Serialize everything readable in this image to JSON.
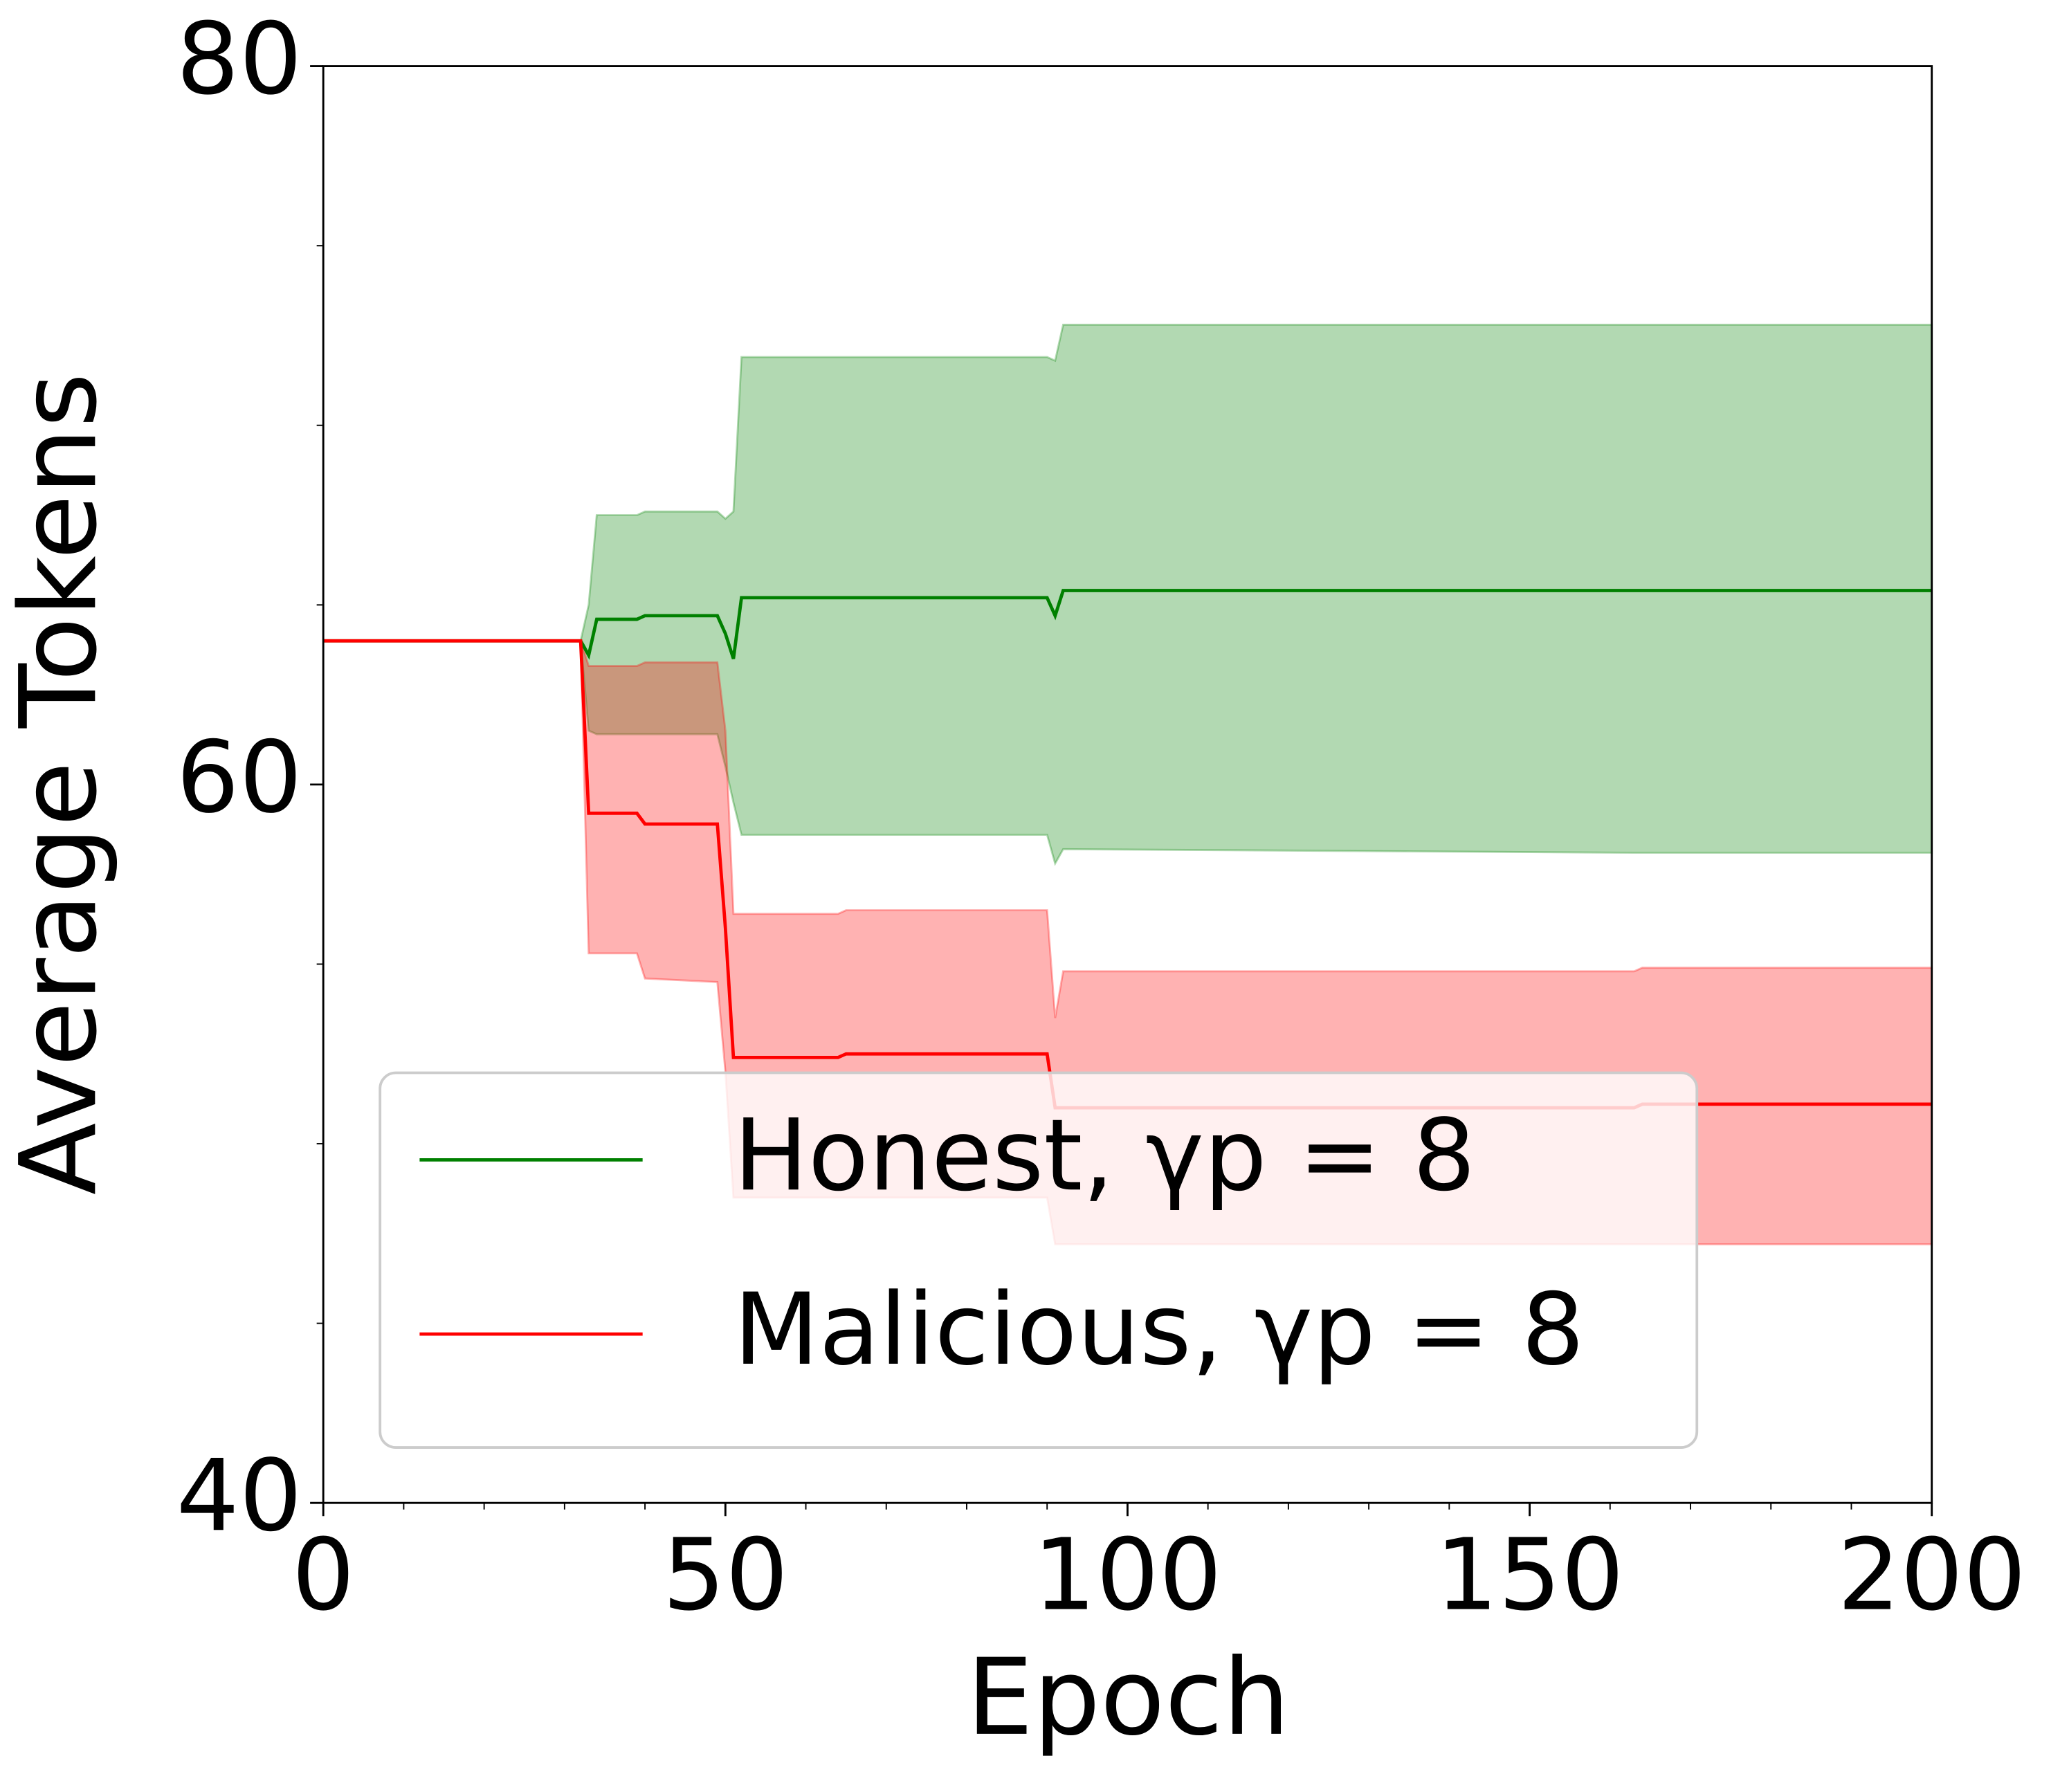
{
  "chart_data": {
    "type": "line",
    "x_label": "Epoch",
    "y_label": "Average Tokens",
    "x": [
      0,
      32,
      33,
      34,
      39,
      40,
      49,
      50,
      51,
      52,
      64,
      65,
      90,
      91,
      92,
      163,
      164,
      200
    ],
    "series": [
      {
        "name": "Honest, γp = 8",
        "color": "#008000",
        "values": [
          64,
          64,
          63.6,
          64.6,
          64.6,
          64.7,
          64.7,
          64.2,
          63.5,
          65.2,
          65.2,
          65.2,
          65.2,
          64.7,
          65.4,
          65.4,
          65.4,
          65.4
        ],
        "lower": [
          64,
          64,
          61.5,
          61.4,
          61.4,
          61.4,
          61.4,
          60.5,
          59.5,
          58.6,
          58.6,
          58.6,
          58.6,
          57.8,
          58.2,
          58.1,
          58.1,
          58.1
        ],
        "upper": [
          64,
          64,
          65.0,
          67.5,
          67.5,
          67.6,
          67.6,
          67.4,
          67.6,
          71.9,
          71.9,
          71.9,
          71.9,
          71.8,
          72.8,
          72.8,
          72.8,
          72.8
        ]
      },
      {
        "name": "Malicious, γp = 8",
        "color": "#ff0000",
        "values": [
          64,
          64,
          59.2,
          59.2,
          59.2,
          58.9,
          58.9,
          56,
          52.4,
          52.4,
          52.4,
          52.5,
          52.5,
          51.0,
          51.0,
          51.0,
          51.1,
          51.1
        ],
        "lower": [
          64,
          64,
          55.3,
          55.3,
          55.3,
          54.6,
          54.5,
          52.0,
          48.5,
          48.5,
          48.5,
          48.5,
          48.5,
          47.2,
          47.2,
          47.2,
          47.2,
          47.2
        ],
        "upper": [
          64,
          64,
          63.3,
          63.3,
          63.3,
          63.4,
          63.4,
          61.5,
          56.4,
          56.4,
          56.4,
          56.5,
          56.5,
          53.5,
          54.8,
          54.8,
          54.9,
          54.9
        ]
      }
    ],
    "xlim": [
      0,
      200
    ],
    "xticks": [
      0,
      50,
      100,
      150,
      200
    ],
    "xminorticks": [
      10,
      20,
      30,
      40,
      60,
      70,
      80,
      90,
      110,
      120,
      130,
      140,
      160,
      170,
      180,
      190
    ],
    "ylim": [
      40,
      80
    ],
    "yticks": [
      40,
      60,
      80
    ],
    "yminorticks": [
      45,
      50,
      55,
      65,
      70,
      75
    ],
    "legend": "lower left"
  }
}
